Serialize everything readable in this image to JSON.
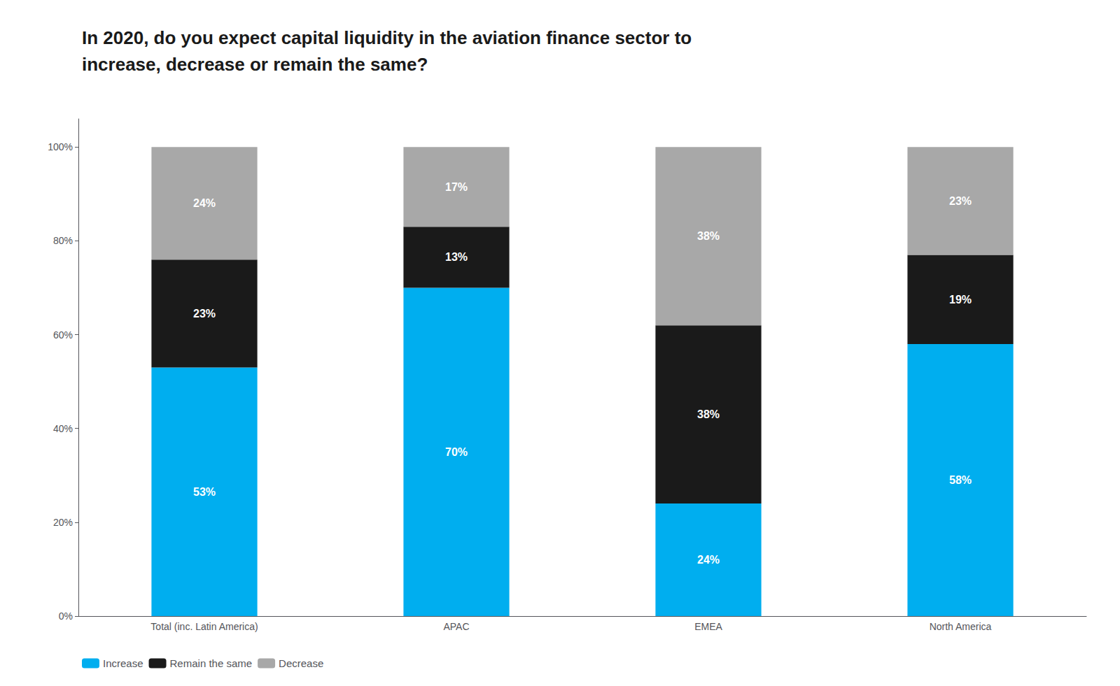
{
  "chart_data": {
    "type": "bar",
    "title": "In 2020, do you expect capital liquidity in the aviation finance sector to\nincrease, decrease or remain the same?",
    "categories": [
      "Total (inc. Latin America)",
      "APAC",
      "EMEA",
      "North America"
    ],
    "series": [
      {
        "name": "Increase",
        "color": "#00AEEF",
        "values": [
          53,
          70,
          24,
          58
        ],
        "value_labels": [
          "53%",
          "70%",
          "24%",
          "58%"
        ]
      },
      {
        "name": "Remain the same",
        "color": "#1A1A1A",
        "values": [
          23,
          13,
          38,
          19
        ],
        "value_labels": [
          "23%",
          "13%",
          "38%",
          "19%"
        ]
      },
      {
        "name": "Decrease",
        "color": "#A8A8A8",
        "values": [
          24,
          17,
          38,
          23
        ],
        "value_labels": [
          "24%",
          "17%",
          "38%",
          "23%"
        ]
      }
    ],
    "stacked": true,
    "data_labels": true,
    "ylim": [
      0,
      106
    ],
    "yticks": [
      {
        "value": 0,
        "label": "0%"
      },
      {
        "value": 20,
        "label": "20%"
      },
      {
        "value": 40,
        "label": "40%"
      },
      {
        "value": 60,
        "label": "60%"
      },
      {
        "value": 80,
        "label": "80%"
      },
      {
        "value": 100,
        "label": "100%"
      }
    ],
    "grid": false,
    "legend": "lower left"
  }
}
